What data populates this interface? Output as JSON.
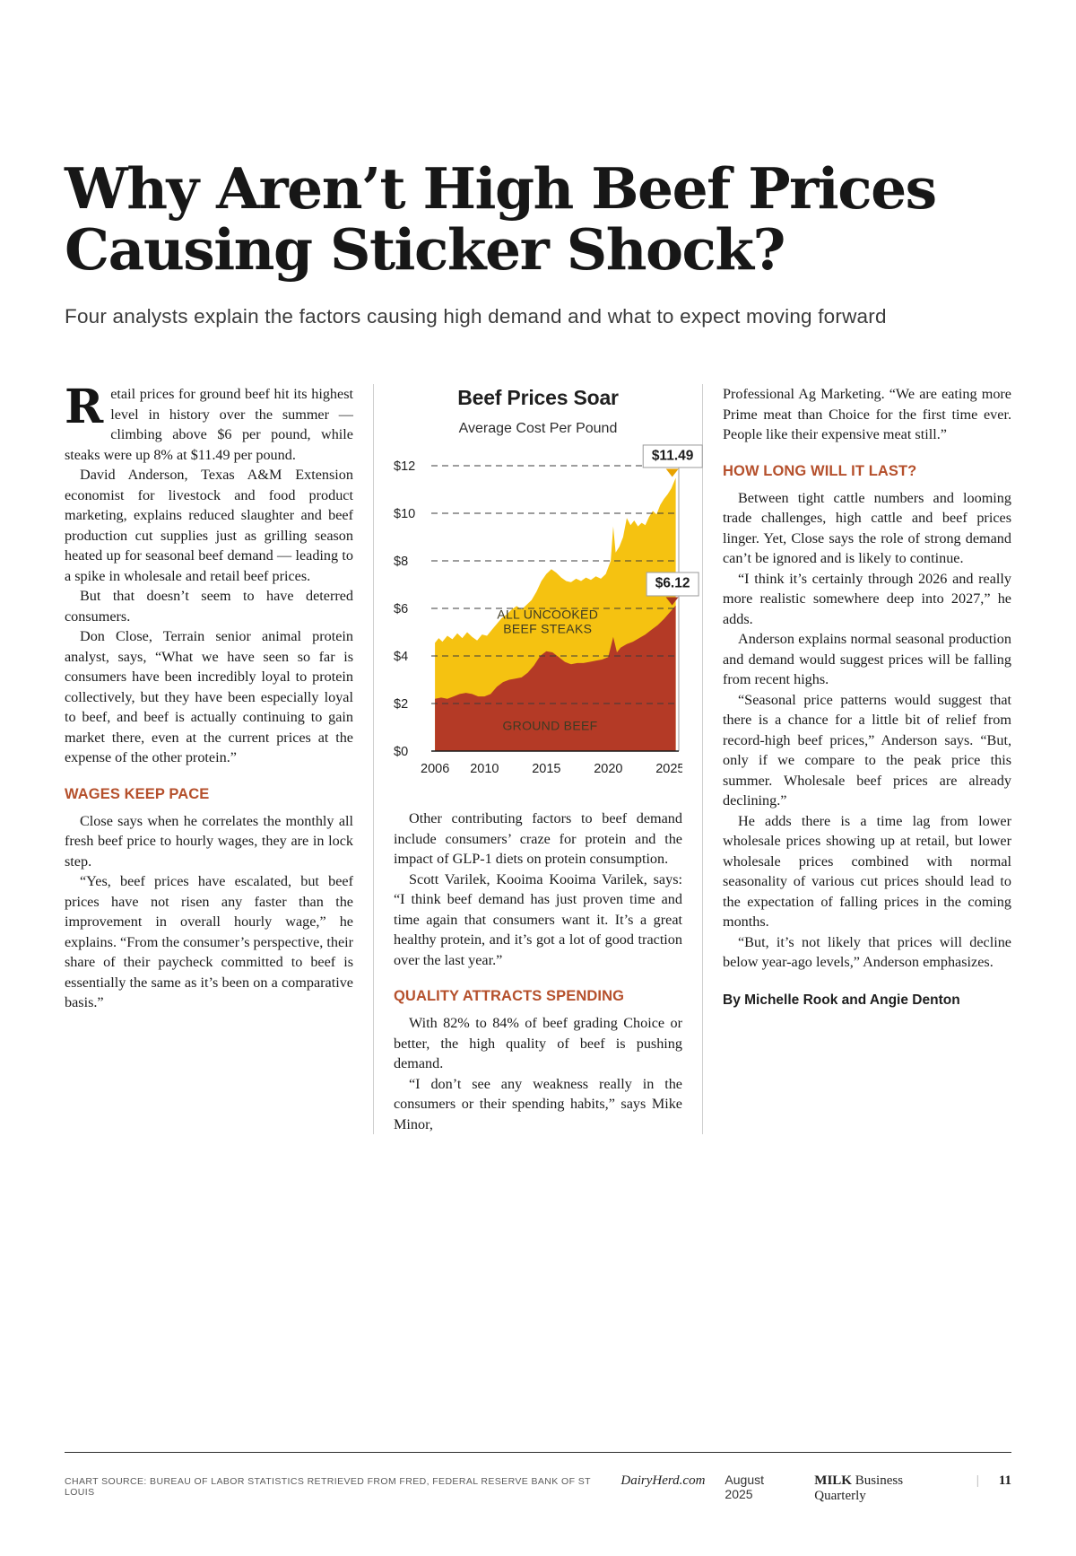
{
  "page": {
    "title_lines": [
      "Why Aren’t High Beef Prices",
      "Causing Sticker Shock?"
    ],
    "subtitle": "Four analysts explain the factors causing high demand and what to expect moving forward"
  },
  "colors": {
    "heading_rust": "#B5502C",
    "steak_yellow": "#F5C211",
    "beef_red": "#B43A26"
  },
  "columns": {
    "col1": [
      {
        "type": "para",
        "dropcap": "R",
        "text": "etail prices for ground beef hit its highest level in history over the summer — climbing above $6 per pound, while steaks were up 8% at $11.49 per pound."
      },
      {
        "type": "para",
        "indent": true,
        "text": "David Anderson, Texas A&M Extension economist for livestock and food product marketing, explains reduced slaughter and beef production cut supplies just as grilling season heated up for seasonal beef demand — leading to a spike in wholesale and retail beef prices."
      },
      {
        "type": "para",
        "indent": true,
        "text": "But that doesn’t seem to have deterred consumers."
      },
      {
        "type": "para",
        "indent": true,
        "text": "Don Close, Terrain senior animal protein analyst, says, “What we have seen so far is consumers have been incredibly loyal to protein collectively, but they have been especially loyal to beef, and beef is actually continuing to gain market there, even at the current prices at the expense of the other protein.”"
      },
      {
        "type": "heading",
        "text": "WAGES KEEP PACE"
      },
      {
        "type": "para",
        "indent": true,
        "text": "Close says when he correlates the monthly all fresh beef price to hourly wages, they are in lock step."
      },
      {
        "type": "para",
        "indent": true,
        "text": "“Yes, beef prices have escalated, but beef prices have not risen any faster than the improvement in overall hourly wage,” he explains. “From the consumer’s perspective, their share of their paycheck committed to beef is essentially the same as it’s been on a comparative basis.”"
      }
    ],
    "col2": [
      {
        "type": "para",
        "indent": true,
        "text": "Other contributing factors to beef demand include consumers’ craze for protein and the impact of GLP-1 diets on protein consumption."
      },
      {
        "type": "para",
        "indent": true,
        "text": "Scott Varilek, Kooima Kooima Varilek, says: “I think beef demand has just proven time and time again that consumers want it. It’s a great healthy protein, and it’s got a lot of good traction over the last year.”"
      },
      {
        "type": "heading",
        "text": "QUALITY ATTRACTS SPENDING"
      },
      {
        "type": "para",
        "indent": true,
        "text": "With 82% to 84% of beef grading Choice or better, the high quality of beef is pushing demand."
      },
      {
        "type": "para",
        "indent": true,
        "text": "“I don’t see any weakness really in the consumers or their spending habits,” says Mike Minor,"
      }
    ],
    "col3": [
      {
        "type": "para",
        "indent": false,
        "text": "Professional Ag Marketing. “We are eating more Prime meat than Choice for the first time ever. People like their expensive meat still.”"
      },
      {
        "type": "heading",
        "text": "HOW LONG WILL IT LAST?"
      },
      {
        "type": "para",
        "indent": true,
        "text": "Between tight cattle numbers and looming trade challenges, high cattle and beef prices linger. Yet, Close says the role of strong demand can’t be ignored and is likely to continue."
      },
      {
        "type": "para",
        "indent": true,
        "text": "“I think it’s certainly through 2026 and really more realistic somewhere deep into 2027,” he adds."
      },
      {
        "type": "para",
        "indent": true,
        "text": "Anderson explains normal seasonal production and demand would suggest prices will be falling from recent highs."
      },
      {
        "type": "para",
        "indent": true,
        "text": "“Seasonal price patterns would suggest that there is a chance for a little bit of relief from record-high beef prices,” Anderson says. “But, only if we compare to the peak price this summer. Wholesale beef prices are already declining.”"
      },
      {
        "type": "para",
        "indent": true,
        "text": "He adds there is a time lag from lower wholesale prices showing up at retail, but lower wholesale prices combined with normal seasonality of various cut prices should lead to the expectation of falling prices in the coming months."
      },
      {
        "type": "para",
        "indent": true,
        "text": "“But, it’s not likely that prices will decline below year-ago levels,” Anderson emphasizes."
      },
      {
        "type": "byline",
        "text": "By Michelle Rook and Angie Denton"
      }
    ]
  },
  "chart_data": {
    "type": "area",
    "title": "Beef Prices Soar",
    "subtitle": "Average Cost Per Pound",
    "xlabel": "",
    "ylabel": "Average cost per pound ($)",
    "xlim": [
      2005.7,
      2025.7
    ],
    "ylim": [
      0,
      12
    ],
    "y_ticks": [
      0,
      2,
      4,
      6,
      8,
      10,
      12
    ],
    "y_tick_labels": [
      "$0",
      "$2",
      "$4",
      "$6",
      "$8",
      "$10",
      "$12"
    ],
    "x_ticks": [
      2006,
      2010,
      2015,
      2020,
      2025
    ],
    "grid": "dashed-horizontal",
    "legend_position": "inside-area-labels",
    "series": [
      {
        "id": "steaks",
        "name": "ALL UNCOOKED BEEF STEAKS",
        "label_lines": [
          "ALL UNCOOKED",
          "BEEF STEAKS"
        ],
        "label_pos": [
          2015.1,
          5.45
        ],
        "color": "#F5C211",
        "points": [
          [
            2006,
            4.55
          ],
          [
            2006.3,
            4.75
          ],
          [
            2006.6,
            4.6
          ],
          [
            2007,
            4.85
          ],
          [
            2007.4,
            4.7
          ],
          [
            2007.8,
            4.95
          ],
          [
            2008.2,
            4.75
          ],
          [
            2008.6,
            5.0
          ],
          [
            2009,
            4.8
          ],
          [
            2009.4,
            4.65
          ],
          [
            2009.8,
            4.9
          ],
          [
            2010.2,
            4.85
          ],
          [
            2010.6,
            5.1
          ],
          [
            2011,
            5.35
          ],
          [
            2011.4,
            5.6
          ],
          [
            2011.8,
            5.75
          ],
          [
            2012.2,
            5.95
          ],
          [
            2012.6,
            6.1
          ],
          [
            2013,
            5.95
          ],
          [
            2013.4,
            6.15
          ],
          [
            2013.8,
            6.35
          ],
          [
            2014.2,
            6.7
          ],
          [
            2014.6,
            7.15
          ],
          [
            2015,
            7.45
          ],
          [
            2015.4,
            7.65
          ],
          [
            2015.8,
            7.5
          ],
          [
            2016.2,
            7.3
          ],
          [
            2016.6,
            7.15
          ],
          [
            2017,
            7.1
          ],
          [
            2017.4,
            7.25
          ],
          [
            2017.8,
            7.15
          ],
          [
            2018.2,
            7.3
          ],
          [
            2018.6,
            7.2
          ],
          [
            2019,
            7.35
          ],
          [
            2019.4,
            7.25
          ],
          [
            2019.8,
            7.45
          ],
          [
            2020.2,
            8.0
          ],
          [
            2020.4,
            9.45
          ],
          [
            2020.6,
            8.35
          ],
          [
            2020.9,
            8.6
          ],
          [
            2021.2,
            9.0
          ],
          [
            2021.5,
            9.8
          ],
          [
            2021.8,
            9.5
          ],
          [
            2022.1,
            9.7
          ],
          [
            2022.4,
            9.45
          ],
          [
            2022.7,
            9.6
          ],
          [
            2023,
            9.5
          ],
          [
            2023.3,
            9.85
          ],
          [
            2023.6,
            10.1
          ],
          [
            2023.9,
            9.95
          ],
          [
            2024.2,
            10.35
          ],
          [
            2024.5,
            10.6
          ],
          [
            2024.8,
            10.8
          ],
          [
            2025.1,
            11.05
          ],
          [
            2025.45,
            11.49
          ]
        ]
      },
      {
        "id": "ground-beef",
        "name": "GROUND BEEF",
        "label_lines": [
          "GROUND BEEF"
        ],
        "label_pos": [
          2015.3,
          1.05
        ],
        "color": "#B43A26",
        "points": [
          [
            2006,
            2.2
          ],
          [
            2006.5,
            2.25
          ],
          [
            2007,
            2.2
          ],
          [
            2007.5,
            2.3
          ],
          [
            2008,
            2.4
          ],
          [
            2008.5,
            2.45
          ],
          [
            2009,
            2.4
          ],
          [
            2009.5,
            2.3
          ],
          [
            2010,
            2.3
          ],
          [
            2010.5,
            2.4
          ],
          [
            2011,
            2.7
          ],
          [
            2011.5,
            2.9
          ],
          [
            2012,
            3.0
          ],
          [
            2012.5,
            3.05
          ],
          [
            2013,
            3.1
          ],
          [
            2013.5,
            3.3
          ],
          [
            2014,
            3.6
          ],
          [
            2014.5,
            4.0
          ],
          [
            2015,
            4.2
          ],
          [
            2015.5,
            4.15
          ],
          [
            2016,
            3.95
          ],
          [
            2016.5,
            3.75
          ],
          [
            2017,
            3.65
          ],
          [
            2017.5,
            3.7
          ],
          [
            2018,
            3.7
          ],
          [
            2018.5,
            3.75
          ],
          [
            2019,
            3.8
          ],
          [
            2019.5,
            3.85
          ],
          [
            2020,
            3.95
          ],
          [
            2020.4,
            4.8
          ],
          [
            2020.7,
            4.15
          ],
          [
            2021,
            4.35
          ],
          [
            2021.5,
            4.5
          ],
          [
            2022,
            4.6
          ],
          [
            2022.5,
            4.75
          ],
          [
            2023,
            4.9
          ],
          [
            2023.5,
            5.1
          ],
          [
            2024,
            5.3
          ],
          [
            2024.5,
            5.55
          ],
          [
            2025,
            5.85
          ],
          [
            2025.45,
            6.12
          ]
        ]
      }
    ],
    "callouts": [
      {
        "id": "steak-price",
        "text": "$11.49",
        "x": 2025.2,
        "value": 11.49,
        "arrow_color": "#E8A200"
      },
      {
        "id": "ground-beef-price",
        "text": "$6.12",
        "x": 2025.2,
        "value": 6.12,
        "arrow_color": "#A8351F"
      }
    ]
  },
  "footer": {
    "source": "CHART SOURCE: BUREAU OF LABOR STATISTICS RETRIEVED FROM FRED, FEDERAL RESERVE BANK OF ST LOUIS",
    "site": "DairyHerd.com",
    "date": "August 2025",
    "publication_bold": "MILK",
    "publication_rest": " Business Quarterly",
    "separator": "|",
    "page_number": "11"
  }
}
